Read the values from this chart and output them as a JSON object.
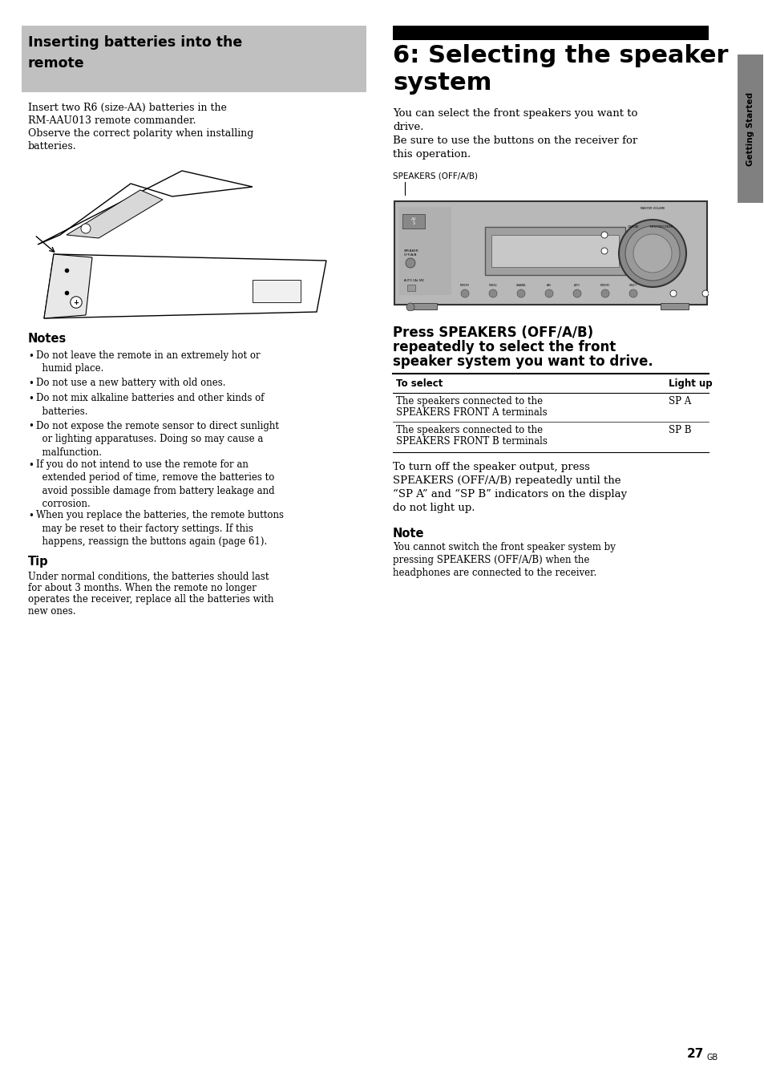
{
  "page_bg": "#ffffff",
  "inserting_header": "Inserting batteries into the\nremote",
  "inserting_header_bg": "#c0c0c0",
  "inserting_body": "Insert two R6 (size-AA) batteries in the\nRM-AAU013 remote commander.\nObserve the correct polarity when installing\nbatteries.",
  "notes_header": "Notes",
  "notes_bullets": [
    "Do not leave the remote in an extremely hot or\nhumid place.",
    "Do not use a new battery with old ones.",
    "Do not mix alkaline batteries and other kinds of\nbatteries.",
    "Do not expose the remote sensor to direct sunlight\nor lighting apparatuses. Doing so may cause a\nmalfunction.",
    "If you do not intend to use the remote for an\nextended period of time, remove the batteries to\navoid possible damage from battery leakage and\ncorrosion.",
    "When you replace the batteries, the remote buttons\nmay be reset to their factory settings. If this\nhappens, reassign the buttons again (page 61)."
  ],
  "tip_header": "Tip",
  "tip_body": "Under normal conditions, the batteries should last\nfor about 3 months. When the remote no longer\noperates the receiver, replace all the batteries with\nnew ones.",
  "chapter_black_bar_color": "#000000",
  "chapter_title": "6: Selecting the speaker\nsystem",
  "chapter_body": "You can select the front speakers you want to\ndrive.\nBe sure to use the buttons on the receiver for\nthis operation.",
  "speakers_label": "SPEAKERS (OFF/A/B)",
  "press_header": "Press SPEAKERS (OFF/A/B)\nrepeatedly to select the front\nspeaker system you want to drive.",
  "table_col1_header": "To select",
  "table_col2_header": "Light up",
  "table_row1_col1": "The speakers connected to the\nSPEAKERS FRONT A terminals",
  "table_row1_col2": "SP A",
  "table_row2_col1": "The speakers connected to the\nSPEAKERS FRONT B terminals",
  "table_row2_col2": "SP B",
  "turnoff_text": "To turn off the speaker output, press\nSPEAKERS (OFF/A/B) repeatedly until the\n“SP A” and “SP B” indicators on the display\ndo not light up.",
  "note2_header": "Note",
  "note2_body": "You cannot switch the front speaker system by\npressing SPEAKERS (OFF/A/B) when the\nheadphones are connected to the receiver.",
  "getting_started_text": "Getting Started",
  "getting_started_bg": "#808080",
  "page_number": "27",
  "page_number_suffix": "GB"
}
